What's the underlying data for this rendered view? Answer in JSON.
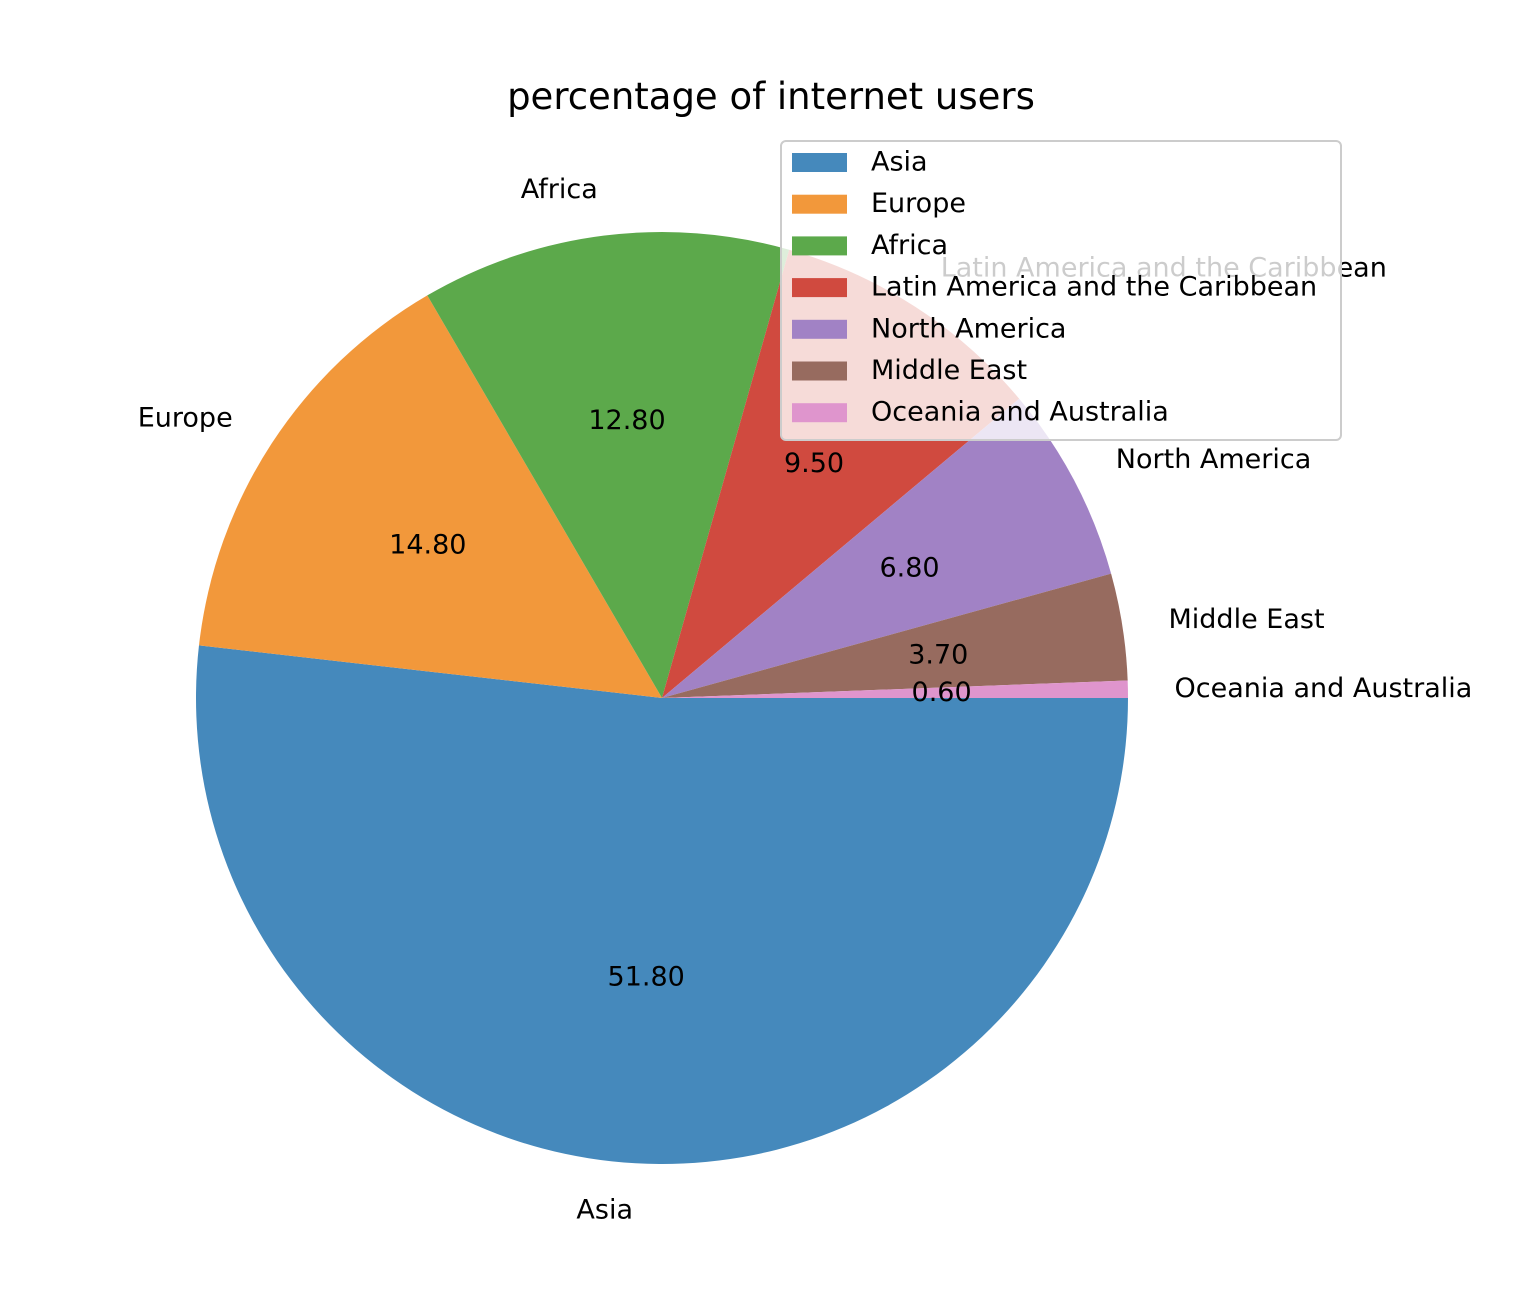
{
  "chart_data": {
    "type": "pie",
    "title": "percentage of internet users",
    "start_angle_deg": 0,
    "direction": "clockwise",
    "legend_position": "top-right",
    "value_format": "2 decimals",
    "slices": [
      {
        "label": "Asia",
        "value": 51.8,
        "value_label": "51.80",
        "color": "#4589bc"
      },
      {
        "label": "Europe",
        "value": 14.8,
        "value_label": "14.80",
        "color": "#f2983b"
      },
      {
        "label": "Africa",
        "value": 12.8,
        "value_label": "12.80",
        "color": "#5ca94b"
      },
      {
        "label": "Latin America and the Caribbean",
        "value": 9.5,
        "value_label": "9.50",
        "color": "#d04a3f"
      },
      {
        "label": "North America",
        "value": 6.8,
        "value_label": "6.80",
        "color": "#a182c5"
      },
      {
        "label": "Middle East",
        "value": 3.7,
        "value_label": "3.70",
        "color": "#976b5f"
      },
      {
        "label": "Oceania and Australia",
        "value": 0.6,
        "value_label": "0.60",
        "color": "#df95cd"
      }
    ]
  }
}
